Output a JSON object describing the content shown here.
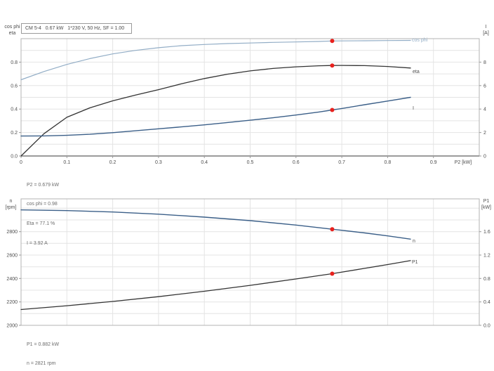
{
  "header": {
    "text": "CM 5-4   0.67 kW   1*230 V, 50 Hz, SF = 1.00"
  },
  "colors": {
    "light_blue": "#92adc6",
    "dark_blue": "#3b5f88",
    "black_curve": "#333333",
    "red_marker": "#e8211d",
    "grid": "#e4e4e4",
    "frame": "#b3b3b3",
    "heavy_axis": "#9b9b9b",
    "tick_text": "#4d4d4d",
    "annotation_text": "#6b6b6b"
  },
  "chart_data": [
    {
      "type": "line",
      "title": "CM 5-4   0.67 kW   1*230 V, 50 Hz, SF = 1.00",
      "xlabel": "P2 [kW]",
      "xlim": [
        0,
        1.0
      ],
      "x_grid": [
        0.1,
        0.2,
        0.3,
        0.4,
        0.5,
        0.6,
        0.7,
        0.8,
        0.9
      ],
      "x_ticks": [
        [
          "0",
          0
        ],
        [
          "0.1",
          0.1
        ],
        [
          "0.2",
          0.2
        ],
        [
          "0.3",
          0.3
        ],
        [
          "0.4",
          0.4
        ],
        [
          "0.5",
          0.5
        ],
        [
          "0.6",
          0.6
        ],
        [
          "0.7",
          0.7
        ],
        [
          "0.8",
          0.8
        ],
        [
          "0.9",
          0.9
        ]
      ],
      "axes": {
        "left": {
          "title_lines": [
            "cos phi",
            "eta"
          ],
          "lim": [
            0,
            1.0
          ],
          "grid_step": 0.1,
          "grid_max": 1.0,
          "ticks": [
            [
              "0.0",
              0
            ],
            [
              "0.2",
              0.2
            ],
            [
              "0.4",
              0.4
            ],
            [
              "0.6",
              0.6
            ],
            [
              "0.8",
              0.8
            ]
          ]
        },
        "right": {
          "title_lines": [
            "I",
            "[A]"
          ],
          "lim": [
            0,
            10
          ],
          "ticks": [
            [
              "0",
              0
            ],
            [
              "2",
              2
            ],
            [
              "4",
              4
            ],
            [
              "6",
              6
            ],
            [
              "8",
              8
            ]
          ]
        }
      },
      "series": [
        {
          "name": "cos-phi",
          "label": "cos phi",
          "axis": "left",
          "color": "#92adc6",
          "label_color": "#92adc6",
          "width": 1.2,
          "points": [
            [
              0,
              0.65
            ],
            [
              0.05,
              0.72
            ],
            [
              0.1,
              0.78
            ],
            [
              0.15,
              0.83
            ],
            [
              0.2,
              0.87
            ],
            [
              0.25,
              0.9
            ],
            [
              0.3,
              0.923
            ],
            [
              0.35,
              0.94
            ],
            [
              0.4,
              0.95
            ],
            [
              0.45,
              0.958
            ],
            [
              0.5,
              0.963
            ],
            [
              0.55,
              0.968
            ],
            [
              0.6,
              0.972
            ],
            [
              0.65,
              0.976
            ],
            [
              0.679,
              0.98
            ],
            [
              0.7,
              0.981
            ],
            [
              0.75,
              0.982
            ],
            [
              0.8,
              0.984
            ],
            [
              0.85,
              0.985
            ]
          ]
        },
        {
          "name": "eta",
          "label": "eta",
          "axis": "left",
          "color": "#333333",
          "label_color": "#4d4d4d",
          "width": 1.3,
          "points": [
            [
              0,
              0
            ],
            [
              0.05,
              0.19
            ],
            [
              0.1,
              0.33
            ],
            [
              0.15,
              0.41
            ],
            [
              0.2,
              0.47
            ],
            [
              0.25,
              0.52
            ],
            [
              0.3,
              0.565
            ],
            [
              0.35,
              0.615
            ],
            [
              0.4,
              0.66
            ],
            [
              0.45,
              0.697
            ],
            [
              0.5,
              0.725
            ],
            [
              0.55,
              0.746
            ],
            [
              0.6,
              0.76
            ],
            [
              0.65,
              0.769
            ],
            [
              0.679,
              0.771
            ],
            [
              0.7,
              0.772
            ],
            [
              0.75,
              0.77
            ],
            [
              0.8,
              0.763
            ],
            [
              0.85,
              0.75
            ]
          ]
        },
        {
          "name": "current",
          "label": "I",
          "axis": "right",
          "color": "#3b5f88",
          "label_color": "#4d4d4d",
          "width": 1.4,
          "points": [
            [
              0,
              1.7
            ],
            [
              0.05,
              1.71
            ],
            [
              0.1,
              1.76
            ],
            [
              0.15,
              1.85
            ],
            [
              0.2,
              1.99
            ],
            [
              0.25,
              2.15
            ],
            [
              0.3,
              2.32
            ],
            [
              0.35,
              2.48
            ],
            [
              0.4,
              2.65
            ],
            [
              0.45,
              2.85
            ],
            [
              0.5,
              3.05
            ],
            [
              0.55,
              3.26
            ],
            [
              0.6,
              3.49
            ],
            [
              0.65,
              3.75
            ],
            [
              0.679,
              3.92
            ],
            [
              0.7,
              4.05
            ],
            [
              0.75,
              4.37
            ],
            [
              0.8,
              4.68
            ],
            [
              0.85,
              5.0
            ]
          ]
        }
      ],
      "operating_point": {
        "x": 0.679,
        "markers": [
          {
            "series": "cos-phi",
            "value": 0.98
          },
          {
            "series": "eta",
            "value": 0.771
          },
          {
            "series": "current",
            "value": 3.92
          }
        ]
      },
      "annotation": [
        "P2 = 0.679 kW",
        "cos phi = 0.98",
        "Eta = 77.1 %",
        "I = 3.92 A"
      ]
    },
    {
      "type": "line",
      "title": "",
      "xlabel": "",
      "xlim": [
        0,
        1.0
      ],
      "x_grid": [
        0.1,
        0.2,
        0.3,
        0.4,
        0.5,
        0.6,
        0.7,
        0.8,
        0.9
      ],
      "x_ticks": [],
      "axes": {
        "left": {
          "title_lines": [
            "n",
            "[rpm]"
          ],
          "lim": [
            2000,
            3080
          ],
          "grid_step": 100,
          "grid_max": 3000,
          "ticks": [
            [
              "2000",
              2000
            ],
            [
              "2200",
              2200
            ],
            [
              "2400",
              2400
            ],
            [
              "2600",
              2600
            ],
            [
              "2800",
              2800
            ]
          ]
        },
        "right": {
          "title_lines": [
            "P1",
            "[kW]"
          ],
          "lim": [
            0,
            2.16
          ],
          "ticks": [
            [
              "0.0",
              0
            ],
            [
              "0.4",
              0.4
            ],
            [
              "0.8",
              0.8
            ],
            [
              "1.2",
              1.2
            ],
            [
              "1.6",
              1.6
            ]
          ]
        }
      },
      "series": [
        {
          "name": "speed",
          "label": "n",
          "axis": "left",
          "color": "#3b5f88",
          "label_color": "#4d4d4d",
          "width": 1.4,
          "points": [
            [
              0,
              2986
            ],
            [
              0.1,
              2980
            ],
            [
              0.2,
              2968
            ],
            [
              0.3,
              2949
            ],
            [
              0.4,
              2924
            ],
            [
              0.5,
              2894
            ],
            [
              0.6,
              2856
            ],
            [
              0.679,
              2821
            ],
            [
              0.75,
              2789
            ],
            [
              0.8,
              2764
            ],
            [
              0.85,
              2736
            ]
          ]
        },
        {
          "name": "p1",
          "label": "P1",
          "axis": "right",
          "color": "#333333",
          "label_color": "#4d4d4d",
          "width": 1.3,
          "points": [
            [
              0,
              0.27
            ],
            [
              0.1,
              0.335
            ],
            [
              0.2,
              0.408
            ],
            [
              0.3,
              0.49
            ],
            [
              0.4,
              0.582
            ],
            [
              0.5,
              0.683
            ],
            [
              0.6,
              0.792
            ],
            [
              0.679,
              0.882
            ],
            [
              0.75,
              0.973
            ],
            [
              0.8,
              1.038
            ],
            [
              0.85,
              1.105
            ]
          ]
        }
      ],
      "operating_point": {
        "x": 0.679,
        "markers": [
          {
            "series": "speed",
            "value": 2821
          },
          {
            "series": "p1",
            "value": 0.882
          }
        ]
      },
      "annotation": [
        "P1 = 0.882 kW",
        "n = 2821 rpm"
      ]
    }
  ]
}
